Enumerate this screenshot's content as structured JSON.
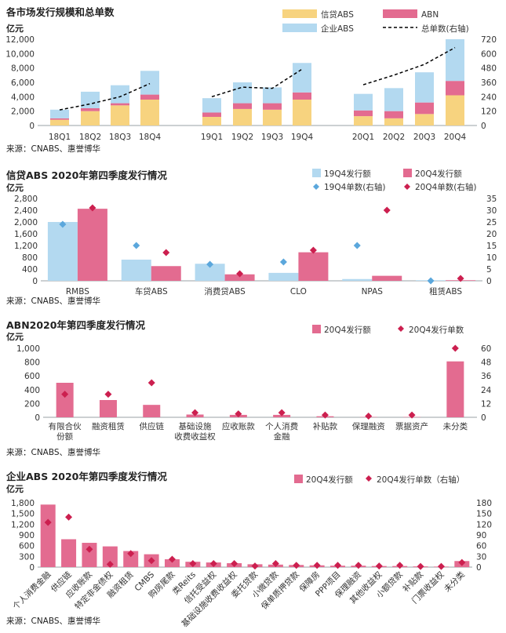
{
  "colors": {
    "credit": "#f7d37f",
    "abn": "#e36b90",
    "corp": "#b3d9f0",
    "diamond_19": "#5ba7dc",
    "diamond_20": "#cc1f4f",
    "line": "#000000",
    "axis": "#9aa0a6"
  },
  "chart_data": [
    {
      "type": "bar",
      "title": "各市场发行规模和总单数",
      "ylabel": "亿元",
      "ylim": [
        0,
        12000
      ],
      "yticks": [
        "0",
        "2,000",
        "4,000",
        "6,000",
        "8,000",
        "10,000",
        "12,000"
      ],
      "y2lim": [
        0,
        720
      ],
      "y2ticks": [
        "0",
        "120",
        "240",
        "360",
        "480",
        "600",
        "720"
      ],
      "stacked": true,
      "categories": [
        "18Q1",
        "18Q2",
        "18Q3",
        "18Q4",
        "19Q1",
        "19Q2",
        "19Q3",
        "19Q4",
        "20Q1",
        "20Q2",
        "20Q3",
        "20Q4"
      ],
      "series": [
        {
          "name": "信贷ABS",
          "values": [
            800,
            2000,
            2800,
            3600,
            1200,
            2300,
            2200,
            3600,
            1300,
            1000,
            1600,
            4200
          ]
        },
        {
          "name": "ABN",
          "values": [
            200,
            400,
            300,
            700,
            600,
            800,
            900,
            1000,
            800,
            1000,
            1600,
            2000
          ]
        },
        {
          "name": "企业ABS",
          "values": [
            1200,
            2300,
            2500,
            3300,
            2000,
            2900,
            2200,
            4100,
            2300,
            3200,
            4200,
            5800
          ]
        },
        {
          "name": "总单数(右轴)",
          "axis": "right",
          "values": [
            130,
            180,
            240,
            350,
            240,
            320,
            310,
            470,
            340,
            420,
            510,
            650
          ]
        }
      ],
      "source": "来源：CNABS、惠誉博华"
    },
    {
      "type": "bar",
      "title": "信贷ABS 2020年第四季度发行情况",
      "ylabel": "亿元",
      "ylim": [
        0,
        2800
      ],
      "yticks": [
        "0",
        "400",
        "800",
        "1,200",
        "1,600",
        "2,000",
        "2,400",
        "2,800"
      ],
      "y2lim": [
        0,
        35
      ],
      "y2ticks": [
        "0",
        "5",
        "10",
        "15",
        "20",
        "25",
        "30",
        "35"
      ],
      "categories": [
        "RMBS",
        "车贷ABS",
        "消费贷ABS",
        "CLO",
        "NPAS",
        "租赁ABS"
      ],
      "series": [
        {
          "name": "19Q4发行额",
          "values": [
            2000,
            720,
            580,
            270,
            60,
            20
          ]
        },
        {
          "name": "20Q4发行额",
          "values": [
            2450,
            500,
            220,
            970,
            170,
            20
          ]
        },
        {
          "name": "19Q4单数(右轴)",
          "axis": "right",
          "values": [
            24,
            15,
            7,
            8,
            15,
            0
          ]
        },
        {
          "name": "20Q4单数(右轴)",
          "axis": "right",
          "values": [
            31,
            12,
            3,
            13,
            30,
            1
          ]
        }
      ],
      "source": "来源：CNABS、惠誉博华"
    },
    {
      "type": "bar",
      "title": "ABN2020年第四季度发行情况",
      "ylabel": "亿元",
      "ylim": [
        0,
        1000
      ],
      "yticks": [
        "0",
        "200",
        "400",
        "600",
        "800",
        "1,000"
      ],
      "y2lim": [
        0,
        60
      ],
      "y2ticks": [
        "0",
        "12",
        "24",
        "36",
        "48",
        "60"
      ],
      "categories": [
        "有限合伙份额",
        "融资租赁",
        "供应链",
        "基础设施收费收益权",
        "应收账款",
        "个人消费金融",
        "补贴款",
        "保理融资",
        "票据资产",
        "未分类"
      ],
      "series": [
        {
          "name": "20Q4发行额",
          "values": [
            500,
            250,
            180,
            40,
            35,
            35,
            15,
            5,
            5,
            810
          ]
        },
        {
          "name": "20Q4发行单数",
          "axis": "right",
          "values": [
            20,
            20,
            30,
            4,
            3,
            4,
            2,
            1,
            2,
            60
          ]
        }
      ],
      "source": "来源：CNABS、惠誉博华"
    },
    {
      "type": "bar",
      "title": "企业ABS 2020年第四季度发行情况",
      "ylabel": "亿元",
      "ylim": [
        0,
        1800
      ],
      "yticks": [
        "0",
        "300",
        "600",
        "900",
        "1,200",
        "1,500",
        "1,800"
      ],
      "y2lim": [
        0,
        180
      ],
      "y2ticks": [
        "0",
        "30",
        "60",
        "90",
        "120",
        "150",
        "180"
      ],
      "categories": [
        "个人消费金融",
        "供应链",
        "应收账款",
        "特定非金债权",
        "融资租赁",
        "CMBS",
        "购房尾款",
        "类Reits",
        "信托受益权",
        "基础设施收费收益权",
        "委托贷款",
        "小微贷款",
        "保单质押贷款",
        "保障房",
        "PPP项目",
        "保理融资",
        "其他收益权",
        "小额贷款",
        "补贴款",
        "门票收益权",
        "未分类"
      ],
      "series": [
        {
          "name": "20Q4发行额",
          "values": [
            1750,
            780,
            680,
            580,
            450,
            360,
            220,
            150,
            130,
            110,
            80,
            70,
            60,
            50,
            40,
            40,
            30,
            30,
            20,
            15,
            170
          ]
        },
        {
          "name": "20Q4发行单数（右轴）",
          "axis": "right",
          "values": [
            125,
            140,
            50,
            8,
            38,
            18,
            22,
            10,
            10,
            10,
            3,
            10,
            5,
            5,
            5,
            5,
            3,
            5,
            2,
            2,
            13
          ]
        }
      ],
      "source": "来源：CNABS、惠誉博华"
    }
  ]
}
